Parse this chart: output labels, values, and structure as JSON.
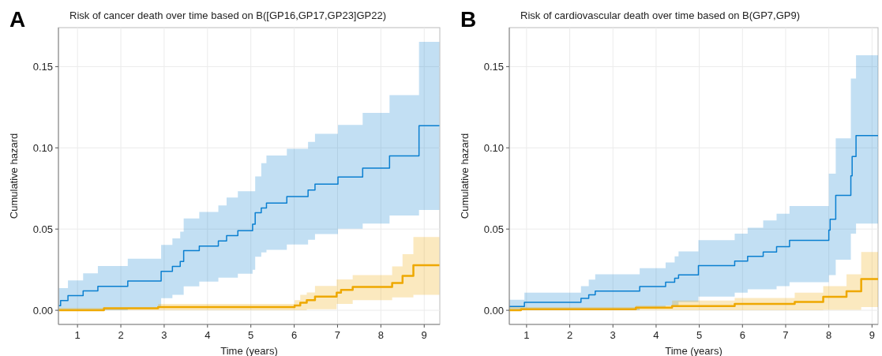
{
  "chart_data": [
    {
      "type": "step",
      "title": "Risk of cancer death over time based on B([GP16,GP17,GP23]GP22)",
      "xlabel": "Time (years)",
      "ylabel": "Cumulative hazard",
      "annotations": [
        "A"
      ],
      "grid": true,
      "xlim": [
        0.56,
        9.36
      ],
      "ylim": [
        -0.0087,
        0.174
      ],
      "xticks": [
        1,
        2,
        3,
        4,
        5,
        6,
        7,
        8,
        9
      ],
      "yticks": [
        {
          "value": 0,
          "label": "0.00"
        },
        {
          "value": 0.05,
          "label": "0.05"
        },
        {
          "value": 0.1,
          "label": "0.10"
        },
        {
          "value": 0.15,
          "label": "0.15"
        }
      ],
      "series": [
        {
          "color": "#0a7fd0",
          "x": [
            0.57,
            0.61,
            0.78,
            1.13,
            1.47,
            2.16,
            2.93,
            3.19,
            3.37,
            3.45,
            3.81,
            4.25,
            4.44,
            4.7,
            5.04,
            5.1,
            5.24,
            5.36,
            5.83,
            6.32,
            6.48,
            7.01,
            7.58,
            8.2,
            8.88,
            9.35
          ],
          "values": [
            0.0028,
            0.006,
            0.009,
            0.012,
            0.0147,
            0.018,
            0.024,
            0.027,
            0.03,
            0.0367,
            0.0395,
            0.0427,
            0.046,
            0.049,
            0.053,
            0.06,
            0.063,
            0.066,
            0.07,
            0.074,
            0.0777,
            0.082,
            0.0875,
            0.095,
            0.1136,
            0.1136
          ],
          "upper": [
            0.0136,
            0.0136,
            0.0184,
            0.0228,
            0.0273,
            0.0317,
            0.0403,
            0.0443,
            0.0484,
            0.0565,
            0.0605,
            0.0646,
            0.0694,
            0.0733,
            0.0733,
            0.0824,
            0.0905,
            0.0953,
            0.0994,
            0.1037,
            0.1086,
            0.1141,
            0.1215,
            0.1325,
            0.1652,
            0.1652
          ],
          "lower": [
            0,
            0,
            0,
            0,
            0,
            0.0015,
            0.0074,
            0.0095,
            0.0095,
            0.0147,
            0.0176,
            0.0201,
            0.0201,
            0.0225,
            0.025,
            0.033,
            0.0356,
            0.0372,
            0.0405,
            0.0434,
            0.0469,
            0.0502,
            0.0534,
            0.0583,
            0.0618,
            0.0618
          ]
        },
        {
          "color": "#eea800",
          "x": [
            0.57,
            1.61,
            2.86,
            6.01,
            6.14,
            6.29,
            6.48,
            6.98,
            7.08,
            7.35,
            8.26,
            8.5,
            8.75,
            9.35
          ],
          "values": [
            0,
            0.0013,
            0.002,
            0.003,
            0.0047,
            0.0063,
            0.0084,
            0.0108,
            0.0125,
            0.0144,
            0.0168,
            0.0212,
            0.0277,
            0.0277
          ],
          "upper": [
            0.0015,
            0.0015,
            0.0039,
            0.0063,
            0.0095,
            0.011,
            0.015,
            0.019,
            0.019,
            0.0217,
            0.027,
            0.0346,
            0.0451,
            0.0451
          ],
          "lower": [
            0,
            0,
            0,
            0,
            0,
            0.0006,
            0.0006,
            0.0039,
            0.0039,
            0.0063,
            0.008,
            0.008,
            0.0095,
            0.0095
          ]
        }
      ]
    },
    {
      "type": "step",
      "title": "Risk of cardiovascular death over time based on B(GP7,GP9)",
      "xlabel": "Time (years)",
      "ylabel": "Cumulative hazard",
      "annotations": [
        "B"
      ],
      "grid": true,
      "xlim": [
        0.6,
        9.14
      ],
      "ylim": [
        -0.0087,
        0.174
      ],
      "xticks": [
        1,
        2,
        3,
        4,
        5,
        6,
        7,
        8,
        9
      ],
      "yticks": [
        {
          "value": 0,
          "label": "0.00"
        },
        {
          "value": 0.05,
          "label": "0.05"
        },
        {
          "value": 0.1,
          "label": "0.10"
        },
        {
          "value": 0.15,
          "label": "0.15"
        }
      ],
      "series": [
        {
          "color": "#0a7fd0",
          "x": [
            0.6,
            0.95,
            2.26,
            2.44,
            2.59,
            3.62,
            4.22,
            4.43,
            4.52,
            4.98,
            5.82,
            6.12,
            6.48,
            6.79,
            7.09,
            8.0,
            8.03,
            8.16,
            8.51,
            8.54,
            8.63,
            9.14
          ],
          "values": [
            0.0023,
            0.0049,
            0.0073,
            0.0095,
            0.0118,
            0.0146,
            0.0173,
            0.0197,
            0.0218,
            0.0275,
            0.0303,
            0.0332,
            0.0359,
            0.0392,
            0.043,
            0.0494,
            0.0561,
            0.0707,
            0.0828,
            0.0947,
            0.1076,
            0.1076
          ],
          "upper": [
            0.0065,
            0.0108,
            0.0149,
            0.0189,
            0.0222,
            0.0259,
            0.0294,
            0.0332,
            0.0362,
            0.0432,
            0.0472,
            0.0508,
            0.0553,
            0.0594,
            0.0642,
            0.0841,
            0.0841,
            0.1058,
            0.1427,
            0.1427,
            0.157,
            0.157
          ],
          "lower": [
            0,
            0,
            0,
            0,
            0,
            0.0011,
            0.0028,
            0.0028,
            0.0052,
            0.0084,
            0.0108,
            0.0129,
            0.0129,
            0.0149,
            0.0173,
            0.0217,
            0.0217,
            0.0311,
            0.0472,
            0.0472,
            0.0534,
            0.0534
          ]
        },
        {
          "color": "#eea800",
          "x": [
            0.6,
            0.87,
            3.53,
            4.37,
            5.82,
            7.21,
            7.87,
            8.41,
            8.75,
            9.14
          ],
          "values": [
            0,
            0.0006,
            0.0016,
            0.0026,
            0.0039,
            0.0052,
            0.0083,
            0.0117,
            0.0193,
            0.0193
          ],
          "upper": [
            0.002,
            0.002,
            0.0028,
            0.006,
            0.0076,
            0.0108,
            0.0149,
            0.0222,
            0.0359,
            0.0359
          ],
          "lower": [
            0,
            0,
            0,
            0,
            0,
            0,
            0.0003,
            0.0003,
            0.002,
            0.002
          ]
        }
      ]
    }
  ]
}
